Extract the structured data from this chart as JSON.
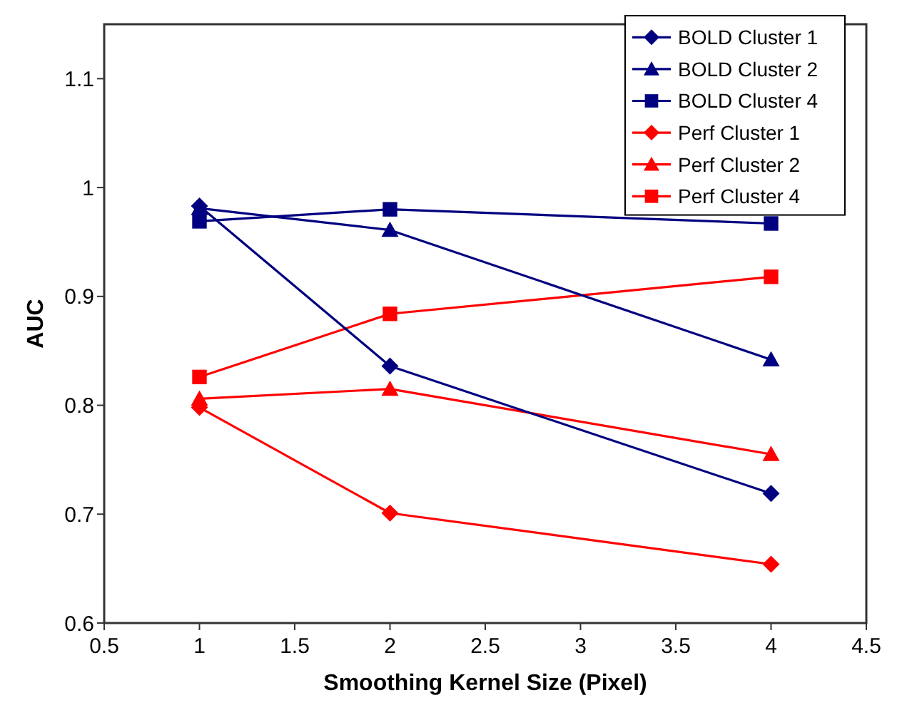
{
  "chart_data": {
    "type": "line",
    "xlabel": "Smoothing Kernel Size (Pixel)",
    "ylabel": "AUC",
    "x": [
      1,
      2,
      4
    ],
    "series": [
      {
        "name": "BOLD Cluster 1",
        "color": "#000080",
        "marker": "diamond",
        "values": [
          0.983,
          0.836,
          0.719
        ]
      },
      {
        "name": "BOLD Cluster 2",
        "color": "#000080",
        "marker": "triangle",
        "values": [
          0.981,
          0.961,
          0.842
        ]
      },
      {
        "name": "BOLD Cluster 4",
        "color": "#000080",
        "marker": "square",
        "values": [
          0.969,
          0.98,
          0.967
        ]
      },
      {
        "name": "Perf Cluster 1",
        "color": "#ff0000",
        "marker": "diamond",
        "values": [
          0.798,
          0.701,
          0.654
        ]
      },
      {
        "name": "Perf Cluster 2",
        "color": "#ff0000",
        "marker": "triangle",
        "values": [
          0.806,
          0.815,
          0.755
        ]
      },
      {
        "name": "Perf Cluster 4",
        "color": "#ff0000",
        "marker": "square",
        "values": [
          0.826,
          0.884,
          0.918
        ]
      }
    ],
    "xlim": [
      0.5,
      4.5
    ],
    "xticks": [
      0.5,
      1,
      1.5,
      2,
      2.5,
      3,
      3.5,
      4,
      4.5
    ],
    "ylim": [
      0.6,
      1.15
    ],
    "yticks": [
      {
        "value": 0.6,
        "label": "0.6"
      },
      {
        "value": 0.7,
        "label": "0.7"
      },
      {
        "value": 0.8,
        "label": "0.8"
      },
      {
        "value": 0.9,
        "label": "0.9"
      },
      {
        "value": 1,
        "label": "1"
      },
      {
        "value": 1.1,
        "label": "1.1"
      }
    ],
    "grid": false,
    "legend": "top right"
  }
}
